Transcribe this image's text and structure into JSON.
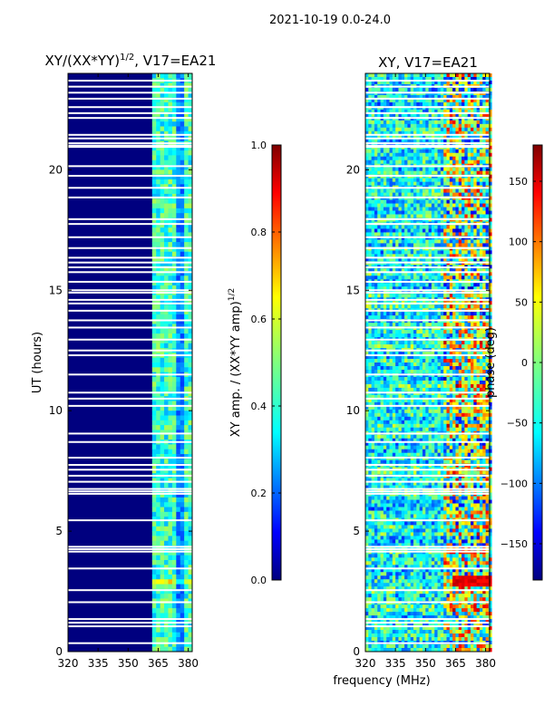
{
  "figure": {
    "suptitle": "2021-10-19 0.0-24.0",
    "xlabel": "frequency (MHz)",
    "ylabel": "UT (hours)"
  },
  "colors": {
    "jet": [
      "#00007f",
      "#0000ff",
      "#007fff",
      "#00ffff",
      "#7fff7f",
      "#ffff00",
      "#ff7f00",
      "#ff0000",
      "#7f0000"
    ],
    "gap": "#ffffff",
    "axis": "#000000"
  },
  "chart_data": [
    {
      "type": "heatmap",
      "panel": "left",
      "title_main": "XY/(XX*YY)",
      "title_sup": "1/2",
      "title_rest": ", V17=EA21",
      "xlim": [
        320,
        382
      ],
      "ylim": [
        0,
        24
      ],
      "x_ticks": [
        320,
        335,
        350,
        365,
        380
      ],
      "y_ticks": [
        0,
        5,
        10,
        15,
        20
      ],
      "ylabel": "UT (hours)",
      "colorbar": {
        "label": "XY amp. / (XX*YY amp)",
        "label_sup": "1/2",
        "range": [
          0.0,
          1.0
        ],
        "ticks": [
          "0.0",
          "0.2",
          "0.4",
          "0.6",
          "0.8",
          "1.0"
        ]
      },
      "description_values": {
        "background_level": 0.05,
        "signal_band_mhz": [
          362,
          382
        ],
        "signal_level_range": [
          0.3,
          0.55
        ],
        "bright_rows_ut": [
          2.7,
          3.0
        ],
        "bright_level": 0.7
      }
    },
    {
      "type": "heatmap",
      "panel": "right",
      "title": "XY, V17=EA21",
      "xlim": [
        320,
        382
      ],
      "ylim": [
        0,
        24
      ],
      "x_ticks": [
        320,
        335,
        350,
        365,
        380
      ],
      "y_ticks": [
        0,
        5,
        10,
        15,
        20
      ],
      "colorbar": {
        "label": "phase (deg)",
        "range": [
          -180,
          180
        ],
        "ticks": [
          "−150",
          "−100",
          "−50",
          "0",
          "50",
          "100",
          "150"
        ]
      },
      "description_values": {
        "noise_band_mhz": [
          320,
          358
        ],
        "structured_band_mhz": [
          358,
          382
        ],
        "red_band_ut": [
          2.7,
          3.2
        ]
      }
    }
  ],
  "gap_rows_ut": [
    0.35,
    1.05,
    1.2,
    1.35,
    2.05,
    2.55,
    3.45,
    4.15,
    4.25,
    4.35,
    5.45,
    6.55,
    6.65,
    6.75,
    7.05,
    7.3,
    7.55,
    7.75,
    8.05,
    8.7,
    9.05,
    10.2,
    10.5,
    10.75,
    11.5,
    12.3,
    12.5,
    12.95,
    13.45,
    13.75,
    14.15,
    14.45,
    14.6,
    14.9,
    15.0,
    15.35,
    15.75,
    15.95,
    16.15,
    16.35,
    16.75,
    17.2,
    17.75,
    17.95,
    18.85,
    19.25,
    19.75,
    20.15,
    20.95,
    21.0,
    21.1,
    21.3,
    21.45,
    22.15,
    22.35,
    22.6,
    22.95,
    23.2,
    23.45,
    23.7
  ]
}
